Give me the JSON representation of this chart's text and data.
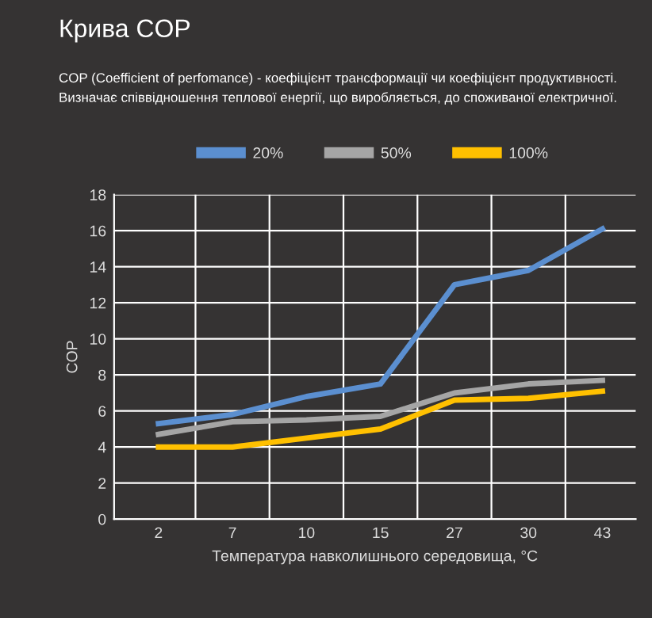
{
  "chart_data": {
    "type": "line",
    "title": "Крива COP",
    "subtitle": "COP (Coefficient of perfomance) - коефіцієнт трансформації чи коефіцієнт продуктивності.\nВизначає співвідношення теплової енергії, що виробляється, до споживаної електричної.",
    "xlabel": "Температура навколишнього середовища, °C",
    "ylabel": "COP",
    "categories": [
      "2",
      "7",
      "10",
      "15",
      "27",
      "30",
      "43"
    ],
    "series": [
      {
        "name": "20%",
        "color": "#5b8fd0",
        "values": [
          5.3,
          5.8,
          6.8,
          7.5,
          13.0,
          13.8,
          16.1
        ]
      },
      {
        "name": "50%",
        "color": "#a5a5a5",
        "values": [
          4.7,
          5.4,
          5.5,
          5.7,
          7.0,
          7.5,
          7.7
        ]
      },
      {
        "name": "100%",
        "color": "#ffc000",
        "values": [
          4.0,
          4.0,
          4.5,
          5.0,
          6.6,
          6.7,
          7.1
        ]
      }
    ],
    "ylim": [
      0,
      18
    ],
    "yticks": [
      0,
      2,
      4,
      6,
      8,
      10,
      12,
      14,
      16,
      18
    ],
    "grid": true,
    "legend": "top",
    "marker": "none",
    "line_style": "solid"
  }
}
